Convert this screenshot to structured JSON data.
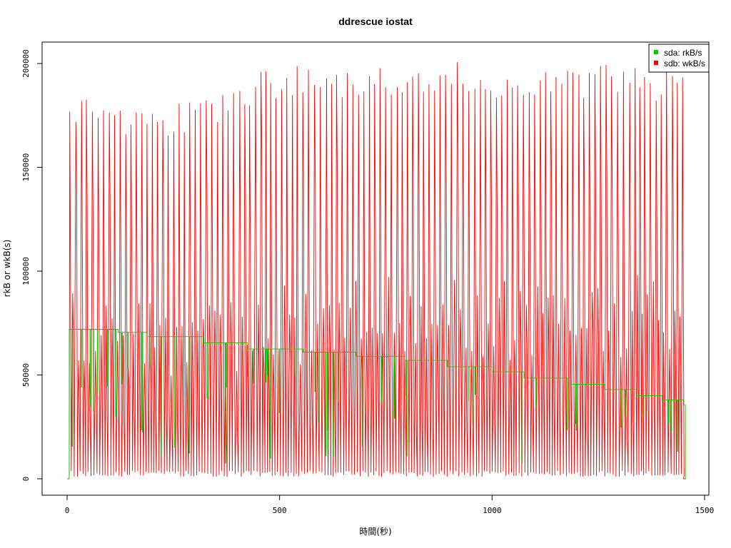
{
  "chart_data": {
    "type": "line",
    "title": "ddrescue iostat",
    "xlabel": "時間(秒)",
    "ylabel": "rkB or wkB(s)",
    "xlim": [
      0,
      1500
    ],
    "ylim": [
      0,
      205000
    ],
    "x_ticks": [
      0,
      500,
      1000,
      1500
    ],
    "x_tick_labels": [
      "0",
      "500",
      "1000",
      "1500"
    ],
    "y_ticks": [
      0,
      50000,
      100000,
      150000,
      200000
    ],
    "y_tick_labels": [
      "0",
      "50000",
      "100000",
      "150000",
      "200000"
    ],
    "grid": false,
    "legend_position": "top-right",
    "series": [
      {
        "name": "sda: rkB/s",
        "color": "#00cc00",
        "step_profile": {
          "x": [
            0,
            5,
            120,
            190,
            320,
            425,
            555,
            680,
            795,
            895,
            1000,
            1075,
            1185,
            1265,
            1340,
            1400,
            1450,
            1455
          ],
          "y": [
            0,
            72000,
            70500,
            68500,
            65500,
            62500,
            61000,
            59000,
            57000,
            54000,
            51500,
            48500,
            45500,
            43000,
            40000,
            38000,
            35500,
            0
          ]
        }
      },
      {
        "name": "sdb: wkB/s",
        "color": "#ff0000",
        "oscillation_profile": {
          "x_start": 5,
          "x_end": 1450,
          "peak_x": [
            0,
            50,
            150,
            300,
            500,
            750,
            1000,
            1250,
            1450
          ],
          "peak_y": [
            181000,
            186000,
            175000,
            180000,
            198000,
            200000,
            199000,
            198000,
            196000
          ],
          "mid_y": [
            90000,
            90000,
            85000,
            80000,
            90000,
            95000,
            95000,
            95000,
            95000
          ],
          "low_y": 1000
        }
      }
    ]
  }
}
